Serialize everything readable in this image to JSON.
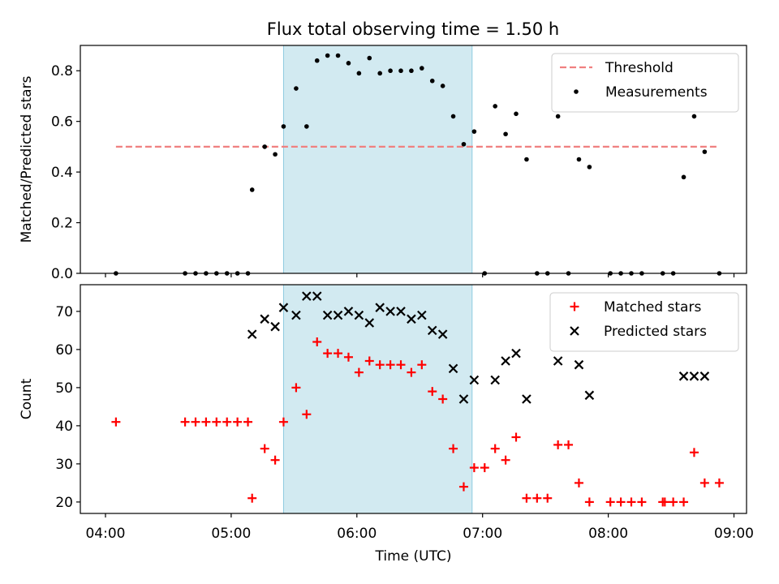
{
  "chart_data": [
    {
      "type": "scatter",
      "title": "Flux total observing time = 1.50 h",
      "xlabel": "",
      "ylabel": "Matched/Predicted stars",
      "ylim": [
        0,
        0.9
      ],
      "xlim": [
        "03:48",
        "09:06"
      ],
      "yticks": [
        0.0,
        0.2,
        0.4,
        0.6,
        0.8
      ],
      "ytick_labels": [
        "0.0",
        "0.2",
        "0.4",
        "0.6",
        "0.8"
      ],
      "highlight_span": {
        "start": "05:25",
        "end": "06:55",
        "color": "#add8e6"
      },
      "legend_position": "top-right",
      "threshold": {
        "name": "Threshold",
        "value": 0.5,
        "x_start": "04:05",
        "x_end": "08:53",
        "color": "#f08080",
        "style": "dashed"
      },
      "series": [
        {
          "name": "Measurements",
          "color": "#000000",
          "marker": "dot",
          "points": [
            [
              "04:05",
              0.0
            ],
            [
              "04:38",
              0.0
            ],
            [
              "04:43",
              0.0
            ],
            [
              "04:48",
              0.0
            ],
            [
              "04:53",
              0.0
            ],
            [
              "04:58",
              0.0
            ],
            [
              "05:03",
              0.0
            ],
            [
              "05:08",
              0.0
            ],
            [
              "05:10",
              0.33
            ],
            [
              "05:16",
              0.5
            ],
            [
              "05:21",
              0.47
            ],
            [
              "05:25",
              0.58
            ],
            [
              "05:31",
              0.73
            ],
            [
              "05:36",
              0.58
            ],
            [
              "05:41",
              0.84
            ],
            [
              "05:46",
              0.86
            ],
            [
              "05:51",
              0.86
            ],
            [
              "05:56",
              0.83
            ],
            [
              "06:01",
              0.79
            ],
            [
              "06:06",
              0.85
            ],
            [
              "06:11",
              0.79
            ],
            [
              "06:16",
              0.8
            ],
            [
              "06:21",
              0.8
            ],
            [
              "06:26",
              0.8
            ],
            [
              "06:31",
              0.81
            ],
            [
              "06:36",
              0.76
            ],
            [
              "06:41",
              0.74
            ],
            [
              "06:46",
              0.62
            ],
            [
              "06:51",
              0.51
            ],
            [
              "06:56",
              0.56
            ],
            [
              "07:01",
              0.0
            ],
            [
              "07:06",
              0.66
            ],
            [
              "07:11",
              0.55
            ],
            [
              "07:16",
              0.63
            ],
            [
              "07:21",
              0.45
            ],
            [
              "07:26",
              0.0
            ],
            [
              "07:31",
              0.0
            ],
            [
              "07:36",
              0.62
            ],
            [
              "07:41",
              0.0
            ],
            [
              "07:46",
              0.45
            ],
            [
              "07:51",
              0.42
            ],
            [
              "08:01",
              0.0
            ],
            [
              "08:06",
              0.0
            ],
            [
              "08:11",
              0.0
            ],
            [
              "08:16",
              0.0
            ],
            [
              "08:26",
              0.0
            ],
            [
              "08:31",
              0.0
            ],
            [
              "08:36",
              0.38
            ],
            [
              "08:41",
              0.62
            ],
            [
              "08:46",
              0.48
            ],
            [
              "08:53",
              0.0
            ]
          ]
        }
      ]
    },
    {
      "type": "scatter",
      "xlabel": "Time (UTC)",
      "ylabel": "Count",
      "ylim": [
        17,
        77
      ],
      "xlim": [
        "03:48",
        "09:06"
      ],
      "yticks": [
        20,
        30,
        40,
        50,
        60,
        70
      ],
      "ytick_labels": [
        "20",
        "30",
        "40",
        "50",
        "60",
        "70"
      ],
      "xticks": [
        "04:00",
        "05:00",
        "06:00",
        "07:00",
        "08:00",
        "09:00"
      ],
      "xtick_labels": [
        "04:00",
        "05:00",
        "06:00",
        "07:00",
        "08:00",
        "09:00"
      ],
      "highlight_span": {
        "start": "05:25",
        "end": "06:55",
        "color": "#add8e6"
      },
      "legend_position": "top-right",
      "series": [
        {
          "name": "Matched stars",
          "color": "#ff0000",
          "marker": "plus",
          "points": [
            [
              "04:05",
              41
            ],
            [
              "04:38",
              41
            ],
            [
              "04:43",
              41
            ],
            [
              "04:48",
              41
            ],
            [
              "04:53",
              41
            ],
            [
              "04:58",
              41
            ],
            [
              "05:03",
              41
            ],
            [
              "05:08",
              41
            ],
            [
              "05:10",
              21
            ],
            [
              "05:16",
              34
            ],
            [
              "05:21",
              31
            ],
            [
              "05:25",
              41
            ],
            [
              "05:31",
              50
            ],
            [
              "05:36",
              43
            ],
            [
              "05:41",
              62
            ],
            [
              "05:46",
              59
            ],
            [
              "05:51",
              59
            ],
            [
              "05:56",
              58
            ],
            [
              "06:01",
              54
            ],
            [
              "06:06",
              57
            ],
            [
              "06:11",
              56
            ],
            [
              "06:16",
              56
            ],
            [
              "06:21",
              56
            ],
            [
              "06:26",
              54
            ],
            [
              "06:31",
              56
            ],
            [
              "06:36",
              49
            ],
            [
              "06:41",
              47
            ],
            [
              "06:46",
              34
            ],
            [
              "06:51",
              24
            ],
            [
              "06:56",
              29
            ],
            [
              "07:01",
              29
            ],
            [
              "07:06",
              34
            ],
            [
              "07:11",
              31
            ],
            [
              "07:16",
              37
            ],
            [
              "07:21",
              21
            ],
            [
              "07:26",
              21
            ],
            [
              "07:31",
              21
            ],
            [
              "07:36",
              35
            ],
            [
              "07:41",
              35
            ],
            [
              "07:46",
              25
            ],
            [
              "07:51",
              20
            ],
            [
              "08:01",
              20
            ],
            [
              "08:06",
              20
            ],
            [
              "08:11",
              20
            ],
            [
              "08:16",
              20
            ],
            [
              "08:26",
              20
            ],
            [
              "08:27",
              20
            ],
            [
              "08:31",
              20
            ],
            [
              "08:36",
              20
            ],
            [
              "08:41",
              33
            ],
            [
              "08:46",
              25
            ],
            [
              "08:53",
              25
            ]
          ]
        },
        {
          "name": "Predicted stars",
          "color": "#000000",
          "marker": "x",
          "points": [
            [
              "05:10",
              64
            ],
            [
              "05:16",
              68
            ],
            [
              "05:21",
              66
            ],
            [
              "05:25",
              71
            ],
            [
              "05:31",
              69
            ],
            [
              "05:36",
              74
            ],
            [
              "05:41",
              74
            ],
            [
              "05:46",
              69
            ],
            [
              "05:51",
              69
            ],
            [
              "05:56",
              70
            ],
            [
              "06:01",
              69
            ],
            [
              "06:06",
              67
            ],
            [
              "06:11",
              71
            ],
            [
              "06:16",
              70
            ],
            [
              "06:21",
              70
            ],
            [
              "06:26",
              68
            ],
            [
              "06:31",
              69
            ],
            [
              "06:36",
              65
            ],
            [
              "06:41",
              64
            ],
            [
              "06:46",
              55
            ],
            [
              "06:51",
              47
            ],
            [
              "06:56",
              52
            ],
            [
              "07:06",
              52
            ],
            [
              "07:11",
              57
            ],
            [
              "07:16",
              59
            ],
            [
              "07:21",
              47
            ],
            [
              "07:36",
              57
            ],
            [
              "07:46",
              56
            ],
            [
              "07:51",
              48
            ],
            [
              "08:36",
              53
            ],
            [
              "08:41",
              53
            ],
            [
              "08:46",
              53
            ]
          ]
        }
      ]
    }
  ]
}
